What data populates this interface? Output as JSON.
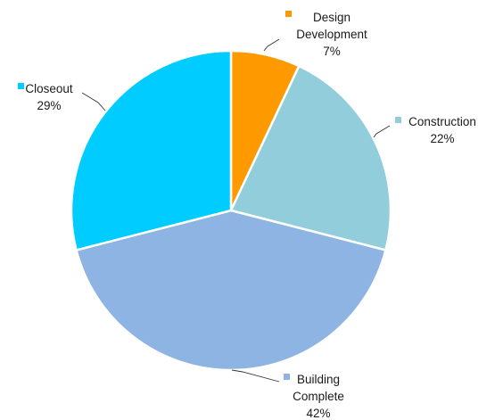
{
  "chart_data": {
    "type": "pie",
    "title": "",
    "slices": [
      {
        "label_lines": [
          "Design",
          "Development"
        ],
        "percent_label": "7%",
        "value": 7,
        "color": "#ff9900"
      },
      {
        "label_lines": [
          "Construction"
        ],
        "percent_label": "22%",
        "value": 22,
        "color": "#92cddc"
      },
      {
        "label_lines": [
          "Building",
          "Complete"
        ],
        "percent_label": "42%",
        "value": 42,
        "color": "#8eb4e3"
      },
      {
        "label_lines": [
          "Closeout"
        ],
        "percent_label": "29%",
        "value": 29,
        "color": "#00ccff"
      }
    ],
    "start_angle": "12 o'clock",
    "direction": "clockwise",
    "legend": "none",
    "data_labels": "outside with leader lines"
  }
}
